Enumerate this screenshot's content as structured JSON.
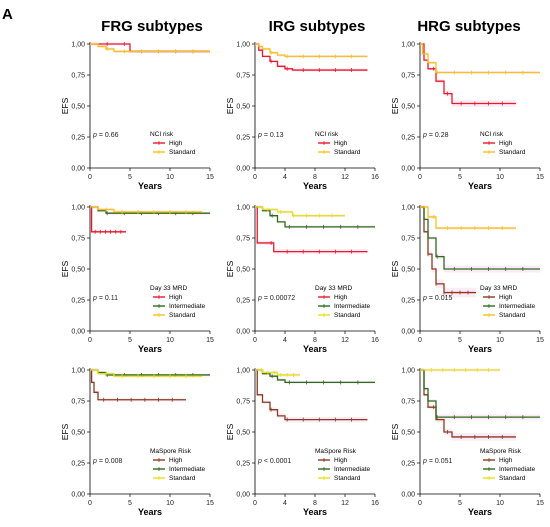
{
  "figure": {
    "panel_letter": "A",
    "column_titles": [
      "FRG subtypes",
      "IRG subtypes",
      "HRG subtypes"
    ]
  },
  "colors": {
    "High": "#e8192c",
    "Standard": "#f7c21b",
    "High_mrd": "#8b3a1f",
    "Intermediate": "#2e6b1c",
    "Standard_mrd": "#e6e21a",
    "band": "#f0c6e8"
  },
  "chart_data": [
    {
      "type": "line",
      "id": "frg-nci",
      "col": 0,
      "row": 0,
      "ylabel": "EFS",
      "xlabel": "Years",
      "ylim": [
        0,
        1
      ],
      "yticks": [
        "0,00",
        "0,25",
        "0,50",
        "0,75",
        "1,00"
      ],
      "xlim": [
        0,
        15
      ],
      "xticks": [
        0,
        5,
        10,
        15
      ],
      "pvalue": "= 0.66",
      "legend_title": "NCI risk",
      "series": [
        {
          "name": "High",
          "color": "#e8192c",
          "x": [
            0,
            1,
            5,
            5,
            15
          ],
          "y": [
            1,
            1,
            1,
            0.94,
            0.94
          ]
        },
        {
          "name": "Standard",
          "color": "#f7c21b",
          "x": [
            0,
            1,
            2,
            3,
            15
          ],
          "y": [
            1,
            0.98,
            0.96,
            0.94,
            0.94
          ]
        }
      ]
    },
    {
      "type": "line",
      "id": "irg-nci",
      "col": 1,
      "row": 0,
      "ylabel": "EFS",
      "xlabel": "Years",
      "ylim": [
        0,
        1
      ],
      "yticks": [
        "0,00",
        "0,25",
        "0,50",
        "0,75",
        "1,00"
      ],
      "xlim": [
        0,
        16
      ],
      "xticks": [
        0,
        4,
        8,
        12,
        16
      ],
      "pvalue": "= 0.13",
      "legend_title": "NCI risk",
      "series": [
        {
          "name": "High",
          "color": "#e8192c",
          "x": [
            0,
            0.5,
            1,
            2,
            3,
            4,
            5,
            15
          ],
          "y": [
            1,
            0.95,
            0.9,
            0.86,
            0.82,
            0.8,
            0.79,
            0.79
          ]
        },
        {
          "name": "Standard",
          "color": "#f7c21b",
          "x": [
            0,
            0.5,
            1,
            2,
            3,
            4,
            15
          ],
          "y": [
            1,
            0.98,
            0.96,
            0.93,
            0.91,
            0.9,
            0.9
          ]
        }
      ]
    },
    {
      "type": "line",
      "id": "hrg-nci",
      "col": 2,
      "row": 0,
      "ylabel": "EFS",
      "xlabel": "Years",
      "ylim": [
        0,
        1
      ],
      "yticks": [
        "0,00",
        "0,25",
        "0,50",
        "0,75",
        "1,00"
      ],
      "xlim": [
        0,
        15
      ],
      "xticks": [
        0,
        5,
        10,
        15
      ],
      "pvalue": "= 0.28",
      "legend_title": "NCI risk",
      "series": [
        {
          "name": "High",
          "color": "#e8192c",
          "x": [
            0,
            0.5,
            1,
            2,
            3,
            4,
            12
          ],
          "y": [
            1,
            0.87,
            0.8,
            0.7,
            0.6,
            0.52,
            0.52
          ]
        },
        {
          "name": "Standard",
          "color": "#f7c21b",
          "x": [
            0,
            0.3,
            1,
            2,
            15
          ],
          "y": [
            1,
            0.92,
            0.85,
            0.77,
            0.77
          ]
        }
      ]
    },
    {
      "type": "line",
      "id": "frg-mrd",
      "col": 0,
      "row": 1,
      "ylabel": "EFS",
      "xlabel": "Years",
      "ylim": [
        0,
        1
      ],
      "yticks": [
        "0,00",
        "0,25",
        "0,50",
        "0,75",
        "1,00"
      ],
      "xlim": [
        0,
        15
      ],
      "xticks": [
        0,
        5,
        10,
        15
      ],
      "pvalue": "= 0.11",
      "legend_title": "Day 33 MRD",
      "series": [
        {
          "name": "High",
          "color": "#e8192c",
          "x": [
            0,
            0.2,
            0.2,
            4.5
          ],
          "y": [
            1,
            1,
            0.8,
            0.8
          ]
        },
        {
          "name": "Intermediate",
          "color": "#2e6b1c",
          "x": [
            0,
            1,
            2,
            15
          ],
          "y": [
            1,
            0.97,
            0.95,
            0.95
          ]
        },
        {
          "name": "Standard",
          "color": "#f7c21b",
          "x": [
            0,
            1,
            3,
            14
          ],
          "y": [
            1,
            0.98,
            0.96,
            0.96
          ]
        }
      ]
    },
    {
      "type": "line",
      "id": "irg-mrd",
      "col": 1,
      "row": 1,
      "ylabel": "EFS",
      "xlabel": "Years",
      "ylim": [
        0,
        1
      ],
      "yticks": [
        "0,00",
        "0,25",
        "0,50",
        "0,75",
        "1,00"
      ],
      "xlim": [
        0,
        16
      ],
      "xticks": [
        0,
        4,
        8,
        12,
        16
      ],
      "pvalue": "= 0.00072",
      "legend_title": "Day 33 MRD",
      "series": [
        {
          "name": "High",
          "color": "#e8192c",
          "x": [
            0,
            0.3,
            0.3,
            2.5,
            2.5,
            15
          ],
          "y": [
            1,
            1,
            0.71,
            0.71,
            0.64,
            0.64
          ]
        },
        {
          "name": "Intermediate",
          "color": "#2e6b1c",
          "x": [
            0,
            1,
            2,
            3,
            4,
            16
          ],
          "y": [
            1,
            0.97,
            0.93,
            0.88,
            0.84,
            0.84
          ]
        },
        {
          "name": "Standard",
          "color": "#e6e21a",
          "x": [
            0,
            1,
            3,
            5,
            12
          ],
          "y": [
            1,
            0.98,
            0.96,
            0.93,
            0.93
          ]
        }
      ]
    },
    {
      "type": "line",
      "id": "hrg-mrd",
      "col": 2,
      "row": 1,
      "ylabel": "EFS",
      "xlabel": "Years",
      "ylim": [
        0,
        1
      ],
      "yticks": [
        "0,00",
        "0,25",
        "0,50",
        "0,75",
        "1,00"
      ],
      "xlim": [
        0,
        15
      ],
      "xticks": [
        0,
        5,
        10,
        15
      ],
      "pvalue": "= 0.015",
      "legend_title": "Day 33 MRD",
      "series": [
        {
          "name": "High",
          "color": "#8b3a1f",
          "x": [
            0,
            0.5,
            1,
            1.5,
            2,
            3,
            7
          ],
          "y": [
            1,
            0.8,
            0.62,
            0.5,
            0.38,
            0.31,
            0.31
          ]
        },
        {
          "name": "Intermediate",
          "color": "#2e6b1c",
          "x": [
            0,
            0.5,
            1,
            2,
            3,
            15
          ],
          "y": [
            1,
            0.9,
            0.75,
            0.6,
            0.5,
            0.5
          ]
        },
        {
          "name": "Standard",
          "color": "#f7c21b",
          "x": [
            0,
            1,
            2,
            12
          ],
          "y": [
            1,
            0.92,
            0.83,
            0.83
          ]
        }
      ]
    },
    {
      "type": "line",
      "id": "frg-ma",
      "col": 0,
      "row": 2,
      "ylabel": "EFS",
      "xlabel": "Years",
      "ylim": [
        0,
        1
      ],
      "yticks": [
        "0,00",
        "0,25",
        "0,50",
        "0,75",
        "1,00"
      ],
      "xlim": [
        0,
        15
      ],
      "xticks": [
        0,
        5,
        10,
        15
      ],
      "pvalue": "= 0.008",
      "legend_title": "MaSpore Risk",
      "series": [
        {
          "name": "High",
          "color": "#8b3a1f",
          "x": [
            0,
            0.2,
            0.5,
            1,
            12
          ],
          "y": [
            1,
            0.9,
            0.82,
            0.76,
            0.76
          ]
        },
        {
          "name": "Intermediate",
          "color": "#2e6b1c",
          "x": [
            0,
            1,
            2,
            15
          ],
          "y": [
            1,
            0.98,
            0.96,
            0.96
          ]
        },
        {
          "name": "Standard",
          "color": "#e6e21a",
          "x": [
            0,
            1,
            3,
            14
          ],
          "y": [
            1,
            0.97,
            0.95,
            0.95
          ]
        }
      ]
    },
    {
      "type": "line",
      "id": "irg-ma",
      "col": 1,
      "row": 2,
      "ylabel": "EFS",
      "xlabel": "Years",
      "ylim": [
        0,
        1
      ],
      "yticks": [
        "0,00",
        "0,25",
        "0,50",
        "0,75",
        "1,00"
      ],
      "xlim": [
        0,
        16
      ],
      "xticks": [
        0,
        4,
        8,
        12,
        16
      ],
      "pvalue": "< 0.0001",
      "legend_title": "MaSpore Risk",
      "series": [
        {
          "name": "High",
          "color": "#8b3a1f",
          "x": [
            0,
            0.3,
            1,
            2,
            3,
            4,
            15
          ],
          "y": [
            1,
            0.8,
            0.74,
            0.68,
            0.63,
            0.6,
            0.6
          ]
        },
        {
          "name": "Intermediate",
          "color": "#2e6b1c",
          "x": [
            0,
            1,
            2,
            3,
            4,
            16
          ],
          "y": [
            1,
            0.97,
            0.95,
            0.92,
            0.9,
            0.9
          ]
        },
        {
          "name": "Standard",
          "color": "#e6e21a",
          "x": [
            0,
            1,
            3,
            6
          ],
          "y": [
            1,
            0.98,
            0.96,
            0.96
          ]
        }
      ]
    },
    {
      "type": "line",
      "id": "hrg-ma",
      "col": 2,
      "row": 2,
      "ylabel": "EFS",
      "xlabel": "Years",
      "ylim": [
        0,
        1
      ],
      "yticks": [
        "0,00",
        "0,25",
        "0,50",
        "0,75",
        "1,00"
      ],
      "xlim": [
        0,
        15
      ],
      "xticks": [
        0,
        5,
        10,
        15
      ],
      "pvalue": "= 0.051",
      "legend_title": "MaSpore Risk",
      "series": [
        {
          "name": "High",
          "color": "#8b3a1f",
          "x": [
            0,
            0.5,
            1,
            2,
            3,
            4,
            12
          ],
          "y": [
            1,
            0.8,
            0.7,
            0.6,
            0.5,
            0.46,
            0.46
          ]
        },
        {
          "name": "Intermediate",
          "color": "#2e6b1c",
          "x": [
            0,
            0.5,
            1,
            2,
            15
          ],
          "y": [
            1,
            0.85,
            0.75,
            0.62,
            0.62
          ]
        },
        {
          "name": "Standard",
          "color": "#e6e21a",
          "x": [
            0,
            10
          ],
          "y": [
            1,
            1
          ]
        }
      ]
    }
  ]
}
